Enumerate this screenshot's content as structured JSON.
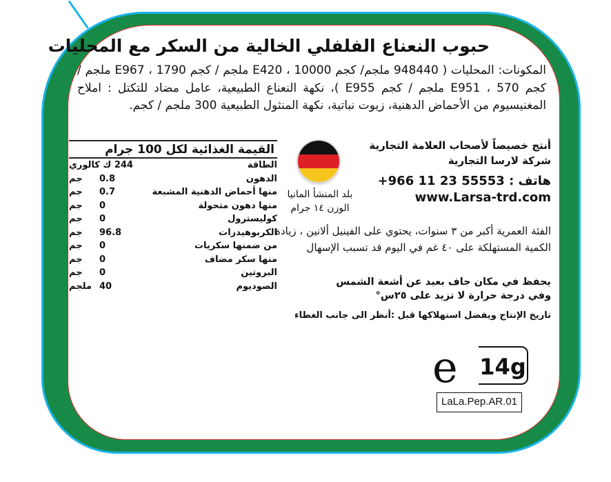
{
  "title": "حبوب النعناع الفلفلي الخالية من السكر مع المحليات",
  "ingredients": "المكونات: المحليات ( 948440 ملجم/ كجم E420 ، 10000 ملجم / كجم E967 ، 1790 ملجم / كجم E951 ، 570 ملجم / كجم E955 )، نكهة النعناع الطبيعية، عامل مضاد للتكتل : املاح المغنيسيوم من الأحماض الدهنية، زيوت نباتية، نكهة المنثول الطبيعية 300 ملجم / كجم.",
  "nutrition": {
    "heading": "القيمة الغذائية لكل 100 جرام",
    "energy": {
      "label": "الطاقة",
      "value": "244 ك كالوري"
    },
    "rows": [
      {
        "label": "الدهون",
        "value": "0.8",
        "unit": "جم"
      },
      {
        "label": "منها أحماض الدهنية المشبعة",
        "value": "0.7",
        "unit": "جم"
      },
      {
        "label": "منها دهون متحولة",
        "value": "0",
        "unit": "جم"
      },
      {
        "label": "كوليسترول",
        "value": "0",
        "unit": "جم"
      },
      {
        "label": "الكربوهيدرات",
        "value": "96.8",
        "unit": "جم"
      },
      {
        "label": "من ضمنها سكريات",
        "value": "0",
        "unit": "جم"
      },
      {
        "label": "منها سكر مضاف",
        "value": "0",
        "unit": "جم"
      },
      {
        "label": "البروتين",
        "value": "0",
        "unit": "جم"
      },
      {
        "label": "الصوديوم",
        "value": "40",
        "unit": "ملجم"
      }
    ]
  },
  "origin": {
    "country": "بلد المنشأ المانيا",
    "weight": "الوزن ١٤ جرام",
    "flag_colors": [
      "#111111",
      "#dd1f26",
      "#f7c51e"
    ]
  },
  "company": {
    "line1": "أنتج خصيصاً لأصحاب العلامة التجارية",
    "line2": "شركة لارسا التجارية",
    "phone": "هاتف : 55553 23 11 966+",
    "website": "www.Larsa-trd.com"
  },
  "warning": "الفئة العمرية أكبر من ٣ سنوات، يحتوي على الفينيل ألانين ، زيادة الكمية المستهلكة على ٤٠ غم في اليوم قد تسبب الإسهال",
  "storage": {
    "line1": "يحفظ في مكان جاف بعيد عن أشعة الشمس",
    "line2": "وفي درجة حرارة لا تزيد على ٢٥س°"
  },
  "dates": "تاريخ الإنتاج ويفضل استهلاكها قبل :أنظر الى جانب الغطاء",
  "estimated_sign": "e",
  "net_weight": "14g",
  "product_code": "LaLa.Pep.AR.01",
  "colors": {
    "border_green": "#188a48",
    "outline_cyan": "#1ab3ea",
    "inner_red": "#e3262b"
  }
}
